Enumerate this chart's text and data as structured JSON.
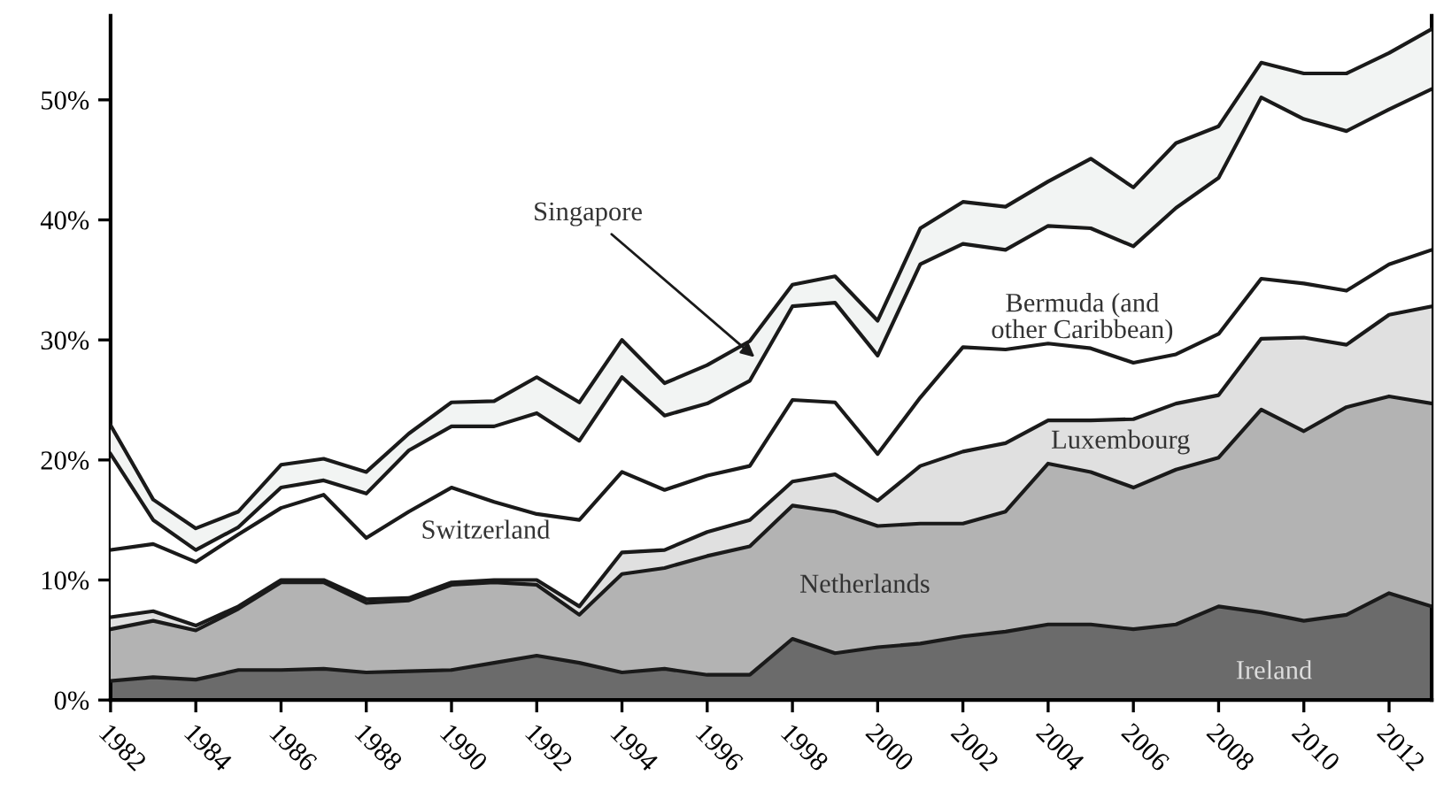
{
  "chart_data": {
    "type": "area",
    "stacked": true,
    "x": [
      1982,
      1983,
      1984,
      1985,
      1986,
      1987,
      1988,
      1989,
      1990,
      1991,
      1992,
      1993,
      1994,
      1995,
      1996,
      1997,
      1998,
      1999,
      2000,
      2001,
      2002,
      2003,
      2004,
      2005,
      2006,
      2007,
      2008,
      2009,
      2010,
      2011,
      2012,
      2013
    ],
    "series": [
      {
        "name": "Ireland",
        "color": "#6b6b6b",
        "values": [
          1.6,
          1.9,
          1.7,
          2.5,
          2.5,
          2.6,
          2.3,
          2.4,
          2.5,
          3.1,
          3.7,
          3.1,
          2.3,
          2.6,
          2.1,
          2.1,
          5.1,
          3.9,
          4.4,
          4.7,
          5.3,
          5.7,
          6.3,
          6.3,
          5.9,
          6.3,
          7.8,
          7.3,
          6.6,
          7.1,
          8.9,
          7.8
        ]
      },
      {
        "name": "Netherlands",
        "color": "#b3b3b3",
        "values": [
          4.3,
          4.7,
          4.1,
          5.1,
          7.3,
          7.2,
          5.8,
          5.9,
          7.1,
          6.7,
          5.9,
          4.0,
          8.2,
          8.4,
          9.9,
          10.7,
          11.1,
          11.8,
          10.1,
          10.0,
          9.4,
          10.0,
          13.4,
          12.7,
          11.8,
          12.9,
          12.4,
          16.9,
          15.8,
          17.3,
          16.4,
          16.9
        ]
      },
      {
        "name": "Luxembourg",
        "color": "#e0e0e0",
        "values": [
          1.0,
          0.8,
          0.4,
          0.2,
          0.2,
          0.2,
          0.3,
          0.2,
          0.2,
          0.2,
          0.4,
          0.7,
          1.8,
          1.5,
          2.0,
          2.2,
          2.0,
          3.1,
          2.1,
          4.8,
          6.0,
          5.7,
          3.6,
          4.3,
          5.7,
          5.5,
          5.2,
          5.9,
          7.8,
          5.2,
          6.8,
          8.1
        ]
      },
      {
        "name": "Switzerland",
        "color": "#ffffff",
        "values": [
          5.6,
          5.6,
          5.3,
          6.0,
          6.0,
          7.1,
          5.1,
          7.2,
          7.9,
          6.5,
          5.5,
          7.2,
          6.7,
          5.0,
          4.7,
          4.5,
          6.8,
          6.0,
          3.9,
          5.7,
          8.7,
          7.8,
          6.4,
          6.0,
          4.7,
          4.1,
          5.1,
          5.0,
          4.5,
          4.5,
          4.2,
          4.7
        ]
      },
      {
        "name": "Bermuda (and\nother Caribbean)",
        "color": "#ffffff",
        "values": [
          8.0,
          2.0,
          1.0,
          0.6,
          1.7,
          1.2,
          3.7,
          5.1,
          5.1,
          6.3,
          8.4,
          6.6,
          7.9,
          6.2,
          6.0,
          7.1,
          7.8,
          8.3,
          8.2,
          11.1,
          8.6,
          8.3,
          9.8,
          10.0,
          9.7,
          12.2,
          13.0,
          15.1,
          13.7,
          13.3,
          12.9,
          13.4
        ]
      },
      {
        "color": "#f2f4f3",
        "values": [
          2.4,
          1.7,
          1.8,
          1.3,
          1.9,
          1.8,
          1.8,
          1.4,
          2.0,
          2.1,
          3.0,
          3.2,
          3.1,
          2.7,
          3.2,
          3.3,
          1.8,
          2.2,
          2.9,
          3.0,
          3.5,
          3.6,
          3.7,
          5.8,
          4.9,
          5.4,
          4.3,
          2.9,
          3.8,
          4.8,
          4.7,
          5.0
        ]
      }
    ],
    "xlim": [
      1982,
      2013
    ],
    "xticks": [
      1982,
      1984,
      1986,
      1988,
      1990,
      1992,
      1994,
      1996,
      1998,
      2000,
      2002,
      2004,
      2006,
      2008,
      2010,
      2012
    ],
    "ylim": [
      0,
      57
    ],
    "yticks": [
      {
        "value": 0,
        "label": "0%"
      },
      {
        "value": 10,
        "label": "10%"
      },
      {
        "value": 20,
        "label": "20%"
      },
      {
        "value": 30,
        "label": "30%"
      },
      {
        "value": 40,
        "label": "40%"
      },
      {
        "value": 50,
        "label": "50%"
      }
    ],
    "annotations": [
      {
        "text": "Singapore",
        "x": 1997.2,
        "y": 28.3
      }
    ],
    "grid": false,
    "legend": false
  }
}
